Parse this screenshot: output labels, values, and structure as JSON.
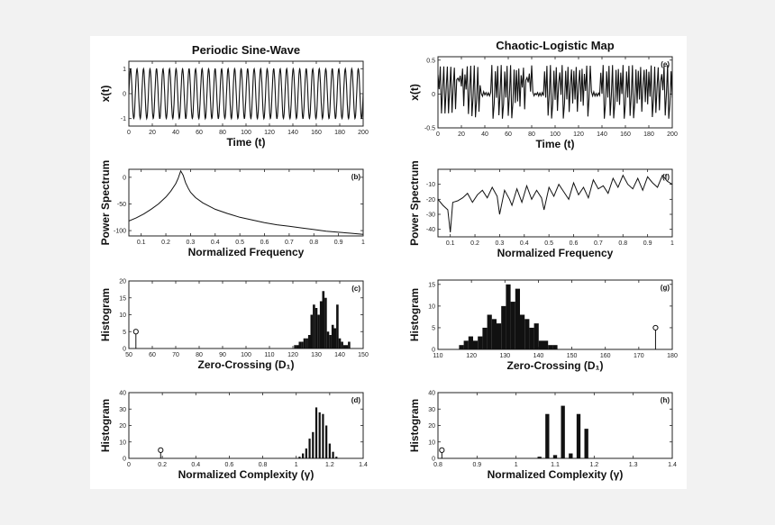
{
  "chart_data": [
    {
      "type": "line",
      "id": "a",
      "column_title": "Periodic Sine-Wave",
      "xlabel": "Time (t)",
      "ylabel": "x(t)",
      "panel_label": "",
      "xlim": [
        0,
        200
      ],
      "ylim": [
        -1.3,
        1.3
      ],
      "xticks": [
        0,
        20,
        40,
        60,
        80,
        100,
        120,
        140,
        160,
        180,
        200
      ],
      "xtick_labels": [
        "0",
        "20",
        "40",
        "60",
        "80",
        "100",
        "120",
        "140",
        "160",
        "180",
        "200"
      ],
      "yticks": [
        -1,
        0,
        1
      ],
      "ytick_labels": [
        "-1",
        "0",
        "1"
      ],
      "generator": {
        "kind": "sine",
        "amplitude": 1,
        "cycles": 36,
        "samples": 800
      }
    },
    {
      "type": "line",
      "id": "e",
      "column_title": "Chaotic-Logistic Map",
      "xlabel": "Time (t)",
      "ylabel": "x(t)",
      "panel_label": "(e)",
      "xlim": [
        0,
        200
      ],
      "ylim": [
        -0.5,
        0.55
      ],
      "xticks": [
        0,
        20,
        40,
        60,
        80,
        100,
        120,
        140,
        160,
        180,
        200
      ],
      "xtick_labels": [
        "0",
        "20",
        "40",
        "60",
        "80",
        "100",
        "120",
        "140",
        "160",
        "180",
        "200"
      ],
      "yticks": [
        -0.5,
        0,
        0.5
      ],
      "ytick_labels": [
        "-0.5",
        "0",
        "0.5"
      ],
      "generator": {
        "kind": "logistic",
        "r": 3.9,
        "x0": 0.3,
        "offset": -0.5,
        "scale": 0.9,
        "samples": 200,
        "calm_windows": [
          [
            37,
            45
          ],
          [
            81,
            90
          ],
          [
            131,
            138
          ]
        ]
      }
    },
    {
      "type": "line",
      "id": "b",
      "column_title": "",
      "xlabel": "Normalized Frequency",
      "ylabel": "Power Spectrum",
      "panel_label": "(b)",
      "xlim": [
        0.05,
        1.0
      ],
      "ylim": [
        -110,
        15
      ],
      "xticks": [
        0.1,
        0.2,
        0.3,
        0.4,
        0.5,
        0.6,
        0.7,
        0.8,
        0.9,
        1
      ],
      "xtick_labels": [
        "0.1",
        "0.2",
        "0.3",
        "0.4",
        "0.5",
        "0.6",
        "0.7",
        "0.8",
        "0.9",
        "1"
      ],
      "yticks": [
        -100,
        -50,
        0
      ],
      "ytick_labels": [
        "-100",
        "-50",
        "0"
      ],
      "x": [
        0.05,
        0.08,
        0.11,
        0.14,
        0.17,
        0.2,
        0.22,
        0.24,
        0.25,
        0.26,
        0.27,
        0.28,
        0.29,
        0.3,
        0.32,
        0.35,
        0.4,
        0.45,
        0.5,
        0.55,
        0.6,
        0.65,
        0.7,
        0.75,
        0.8,
        0.85,
        0.9,
        0.95,
        1.0
      ],
      "y": [
        -82,
        -76,
        -69,
        -60,
        -50,
        -37,
        -26,
        -12,
        -2,
        12,
        4,
        -10,
        -20,
        -28,
        -38,
        -48,
        -60,
        -68,
        -75,
        -80,
        -85,
        -89,
        -92,
        -95,
        -98,
        -101,
        -103,
        -105,
        -107
      ]
    },
    {
      "type": "line",
      "id": "f",
      "column_title": "",
      "xlabel": "Normalized Frequency",
      "ylabel": "Power Spectrum",
      "panel_label": "(f)",
      "xlim": [
        0.05,
        1.0
      ],
      "ylim": [
        -45,
        0
      ],
      "xticks": [
        0.1,
        0.2,
        0.3,
        0.4,
        0.5,
        0.6,
        0.7,
        0.8,
        0.9,
        1
      ],
      "xtick_labels": [
        "0.1",
        "0.2",
        "0.3",
        "0.4",
        "0.5",
        "0.6",
        "0.7",
        "0.8",
        "0.9",
        "1"
      ],
      "yticks": [
        -40,
        -30,
        -20,
        -10
      ],
      "ytick_labels": [
        "-40",
        "-30",
        "-20",
        "-10"
      ],
      "x": [
        0.05,
        0.07,
        0.09,
        0.1,
        0.11,
        0.13,
        0.15,
        0.17,
        0.19,
        0.21,
        0.23,
        0.25,
        0.27,
        0.29,
        0.3,
        0.32,
        0.34,
        0.35,
        0.37,
        0.39,
        0.41,
        0.43,
        0.45,
        0.47,
        0.48,
        0.5,
        0.52,
        0.54,
        0.56,
        0.58,
        0.6,
        0.62,
        0.64,
        0.66,
        0.68,
        0.7,
        0.72,
        0.74,
        0.76,
        0.78,
        0.8,
        0.82,
        0.84,
        0.86,
        0.88,
        0.9,
        0.92,
        0.94,
        0.96,
        0.98,
        1.0
      ],
      "y": [
        -20,
        -24,
        -27,
        -42,
        -22,
        -21,
        -19,
        -16,
        -22,
        -17,
        -14,
        -19,
        -12,
        -18,
        -30,
        -14,
        -20,
        -24,
        -13,
        -22,
        -11,
        -20,
        -14,
        -19,
        -27,
        -12,
        -18,
        -10,
        -15,
        -20,
        -9,
        -17,
        -12,
        -19,
        -7,
        -13,
        -11,
        -16,
        -6,
        -12,
        -4,
        -10,
        -13,
        -6,
        -14,
        -5,
        -9,
        -12,
        -4,
        -8,
        -10
      ]
    },
    {
      "type": "bar",
      "id": "c",
      "column_title": "",
      "xlabel": "Zero-Crossing (D₁)",
      "ylabel": "Histogram",
      "panel_label": "(c)",
      "xlim": [
        50,
        150
      ],
      "ylim": [
        0,
        20
      ],
      "xticks": [
        50,
        60,
        70,
        80,
        90,
        100,
        110,
        120,
        130,
        140,
        150
      ],
      "xtick_labels": [
        "50",
        "60",
        "70",
        "80",
        "90",
        "100",
        "110",
        "120",
        "130",
        "140",
        "150"
      ],
      "yticks": [
        0,
        5,
        10,
        15,
        20
      ],
      "ytick_labels": [
        "0",
        "5",
        "10",
        "15",
        "20"
      ],
      "bin_width": 1,
      "x": [
        121,
        122,
        123,
        124,
        125,
        126,
        127,
        128,
        129,
        130,
        131,
        132,
        133,
        134,
        135,
        136,
        137,
        138,
        139,
        140,
        141,
        142,
        143,
        144
      ],
      "values": [
        1,
        1,
        2,
        2,
        3,
        3,
        4,
        10,
        13,
        12,
        10,
        14,
        17,
        15,
        5,
        4,
        7,
        6,
        13,
        3,
        2,
        1,
        1,
        2
      ],
      "stem": {
        "x": 53,
        "y": 5
      }
    },
    {
      "type": "bar",
      "id": "g",
      "column_title": "",
      "xlabel": "Zero-Crossing (D₁)",
      "ylabel": "Histogram",
      "panel_label": "(g)",
      "xlim": [
        110,
        180
      ],
      "ylim": [
        0,
        16
      ],
      "xticks": [
        110,
        120,
        130,
        140,
        150,
        160,
        170,
        180
      ],
      "xtick_labels": [
        "110",
        "120",
        "130",
        "140",
        "150",
        "160",
        "170",
        "180"
      ],
      "yticks": [
        0,
        5,
        10,
        15
      ],
      "ytick_labels": [
        "0",
        "5",
        "10",
        "15"
      ],
      "bin_width": 1.4,
      "x": [
        117,
        118.4,
        119.8,
        121.2,
        122.6,
        124,
        125.4,
        126.8,
        128.2,
        129.6,
        131,
        132.4,
        133.8,
        135.2,
        136.6,
        138,
        139.4,
        140.8,
        142.2,
        143.6,
        145
      ],
      "values": [
        1,
        2,
        3,
        2,
        3,
        5,
        8,
        7,
        6,
        10,
        15,
        11,
        14,
        8,
        7,
        5,
        6,
        2,
        2,
        1,
        1
      ],
      "stem": {
        "x": 175,
        "y": 5
      }
    },
    {
      "type": "bar",
      "id": "d",
      "column_title": "",
      "xlabel": "Normalized Complexity (γ)",
      "ylabel": "Histogram",
      "panel_label": "(d)",
      "xlim": [
        0,
        1.4
      ],
      "ylim": [
        0,
        40
      ],
      "xticks": [
        0,
        0.2,
        0.4,
        0.6,
        0.8,
        1,
        1.2,
        1.4
      ],
      "xtick_labels": [
        "0",
        "0.2",
        "0.4",
        "0.6",
        "0.8",
        "1",
        "1.2",
        "1.4"
      ],
      "yticks": [
        0,
        10,
        20,
        30,
        40
      ],
      "ytick_labels": [
        "0",
        "10",
        "20",
        "30",
        "40"
      ],
      "bin_width": 0.012,
      "x": [
        1.02,
        1.04,
        1.06,
        1.08,
        1.1,
        1.12,
        1.14,
        1.16,
        1.18,
        1.2,
        1.22,
        1.24
      ],
      "values": [
        1,
        3,
        6,
        12,
        16,
        31,
        28,
        27,
        20,
        9,
        4,
        1
      ],
      "stem": {
        "x": 0.19,
        "y": 5
      }
    },
    {
      "type": "bar",
      "id": "h",
      "column_title": "",
      "xlabel": "Normalized Complexity (γ)",
      "ylabel": "Histogram",
      "panel_label": "(h)",
      "xlim": [
        0.8,
        1.4
      ],
      "ylim": [
        0,
        40
      ],
      "xticks": [
        0.8,
        0.9,
        1,
        1.1,
        1.2,
        1.3,
        1.4
      ],
      "xtick_labels": [
        "0.8",
        "0.9",
        "1",
        "1.1",
        "1.2",
        "1.3",
        "1.4"
      ],
      "yticks": [
        0,
        10,
        20,
        30,
        40
      ],
      "ytick_labels": [
        "0",
        "10",
        "20",
        "30",
        "40"
      ],
      "bin_width": 0.01,
      "x": [
        1.06,
        1.08,
        1.1,
        1.12,
        1.14,
        1.16,
        1.18
      ],
      "values": [
        1,
        27,
        2,
        32,
        3,
        27,
        18
      ],
      "stem": {
        "x": 0.81,
        "y": 5
      }
    }
  ]
}
